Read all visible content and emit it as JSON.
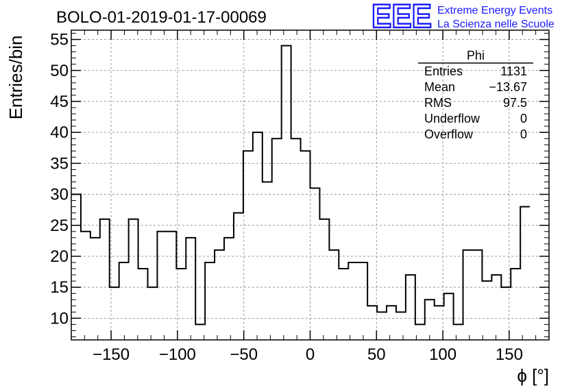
{
  "brand_color": "#1a1aff",
  "logo": {
    "mark": "EEE",
    "line1": "Extreme Energy Events",
    "line2": "La Scienza nelle Scuole"
  },
  "stats_box": {
    "title": "Phi",
    "rows": [
      {
        "label": "Entries",
        "value": "1131"
      },
      {
        "label": "Mean",
        "value": "−13.67"
      },
      {
        "label": "RMS",
        "value": "97.5"
      },
      {
        "label": "Underflow",
        "value": "0"
      },
      {
        "label": "Overflow",
        "value": "0"
      }
    ]
  },
  "chart_data": {
    "type": "histogram",
    "title": "BOLO-01-2019-01-17-00069",
    "xlabel": "ϕ [°]",
    "ylabel": "Entries/bin",
    "xlim": [
      -180,
      180
    ],
    "ylim": [
      6.5,
      56.5
    ],
    "bin_width": 7.2,
    "xticks": [
      -150,
      -100,
      -50,
      0,
      50,
      100,
      150
    ],
    "xtick_labels": [
      "−150",
      "−100",
      "−50",
      "0",
      "50",
      "100",
      "150"
    ],
    "yticks": [
      10,
      15,
      20,
      25,
      30,
      35,
      40,
      45,
      50,
      55
    ],
    "grid": true,
    "values": [
      30,
      24,
      23,
      26,
      15,
      19,
      26,
      18,
      15,
      24,
      24,
      18,
      23,
      9,
      19,
      21,
      23,
      27,
      37,
      40,
      32,
      39,
      54,
      39,
      37,
      31,
      26,
      21,
      18,
      19,
      19,
      12,
      11,
      12,
      11,
      17,
      9,
      13,
      12,
      14,
      9,
      21,
      21,
      16,
      17,
      15,
      18,
      28
    ]
  }
}
